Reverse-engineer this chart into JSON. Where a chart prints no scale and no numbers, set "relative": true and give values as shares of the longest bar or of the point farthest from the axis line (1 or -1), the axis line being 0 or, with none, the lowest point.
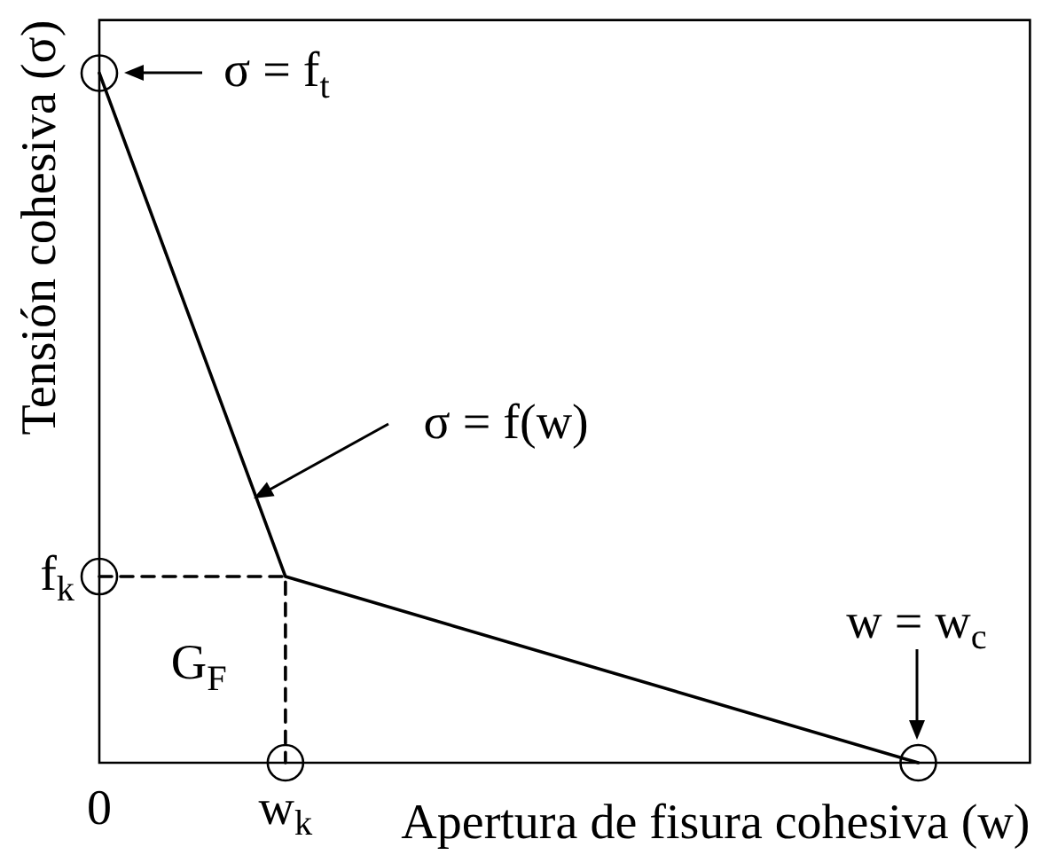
{
  "chart_data": {
    "type": "line",
    "relative": true,
    "xlabel": "Apertura de fisura cohesiva (w)",
    "ylabel": "Tensión cohesiva (σ)",
    "categories": [
      "0",
      null,
      null,
      null,
      null,
      "w$_{k}$",
      null,
      null,
      null,
      null,
      null,
      null,
      null,
      null,
      null,
      null,
      null,
      null,
      null,
      null,
      null,
      null,
      null,
      null,
      null,
      null
    ],
    "series": [
      {
        "color": "#000000",
        "values": [
          1,
          null,
          null,
          null,
          null,
          0.27,
          null,
          null,
          null,
          null,
          null,
          null,
          null,
          null,
          null,
          null,
          null,
          null,
          null,
          null,
          null,
          null,
          0,
          null,
          null,
          null
        ],
        "marker": "none",
        "line_style": "solid"
      },
      {
        "color": "#000000",
        "x": [
          "0",
          "w$_{k}$",
          "w$_{k}$"
        ],
        "values": [
          0.27,
          0.27,
          0
        ],
        "marker": "none",
        "line_style": "dashed"
      },
      {
        "type": "scatter",
        "color": "#000000",
        "values": [
          1,
          null,
          null,
          null,
          null,
          null,
          null,
          null,
          null,
          null,
          null,
          null,
          null,
          null,
          null,
          null,
          null,
          null,
          null,
          null,
          null,
          null,
          0,
          null,
          null,
          null
        ],
        "marker": "circle"
      },
      {
        "type": "scatter",
        "color": "#000000",
        "x": [
          "0",
          "w$_{k}$"
        ],
        "values": [
          0.27,
          0
        ],
        "marker": "circle"
      }
    ],
    "annotations": [
      {
        "text": "σ = f$_{t}$",
        "x": "0",
        "y": 1
      },
      "σ = f(w)",
      "w = w$_{c}$",
      "G$_{F}$",
      {
        "text": "f$_{k}$",
        "x": "0",
        "y": 0.27
      }
    ],
    "legend": false,
    "grid": false
  }
}
